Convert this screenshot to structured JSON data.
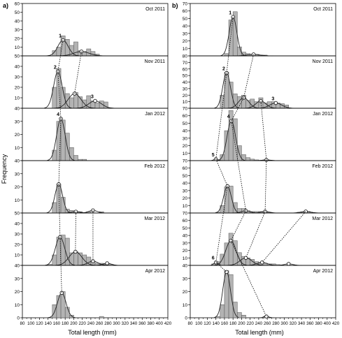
{
  "chart_data": {
    "type": "bar",
    "ylabel": "Frequency",
    "xlabel": "Total length (mm)",
    "x_ticks": [
      80,
      100,
      120,
      140,
      160,
      180,
      200,
      220,
      240,
      260,
      280,
      300,
      320,
      340,
      360,
      380,
      400,
      420
    ],
    "bin_width": 10,
    "panels": [
      {
        "id": "a",
        "label": "a)",
        "months": [
          {
            "month": "Oct 2011",
            "ylim": [
              0,
              60
            ],
            "yticks": [
              0,
              10,
              20,
              30,
              40,
              50,
              60
            ],
            "bins": [
              [
                150,
                6
              ],
              [
                160,
                10
              ],
              [
                170,
                23
              ],
              [
                180,
                19
              ],
              [
                190,
                12
              ],
              [
                200,
                16
              ],
              [
                210,
                6
              ],
              [
                220,
                5
              ],
              [
                230,
                8
              ],
              [
                240,
                5
              ],
              [
                250,
                2
              ]
            ],
            "cohorts": [
              {
                "label": "1",
                "mean": 175,
                "sd": 12,
                "peak": 18
              },
              {
                "label": "",
                "mean": 218,
                "sd": 18,
                "peak": 5
              }
            ]
          },
          {
            "month": "Nov 2011",
            "ylim": [
              0,
              50
            ],
            "yticks": [
              0,
              10,
              20,
              30,
              40,
              50
            ],
            "bins": [
              [
                150,
                20
              ],
              [
                160,
                38
              ],
              [
                170,
                20
              ],
              [
                180,
                14
              ],
              [
                190,
                10
              ],
              [
                200,
                15
              ],
              [
                210,
                11
              ],
              [
                220,
                8
              ],
              [
                230,
                12
              ],
              [
                240,
                7
              ],
              [
                250,
                5
              ],
              [
                260,
                7
              ],
              [
                270,
                6
              ]
            ],
            "cohorts": [
              {
                "label": "2",
                "mean": 163,
                "sd": 10,
                "peak": 35
              },
              {
                "label": "",
                "mean": 202,
                "sd": 15,
                "peak": 14
              },
              {
                "label": "3",
                "mean": 250,
                "sd": 15,
                "peak": 7
              }
            ]
          },
          {
            "month": "Jan 2012",
            "ylim": [
              0,
              40
            ],
            "yticks": [
              0,
              10,
              20,
              30,
              40
            ],
            "bins": [
              [
                150,
                8
              ],
              [
                160,
                30
              ],
              [
                170,
                31
              ],
              [
                180,
                21
              ],
              [
                190,
                10
              ],
              [
                200,
                4
              ],
              [
                210,
                1
              ],
              [
                220,
                1
              ]
            ],
            "cohorts": [
              {
                "label": "4",
                "mean": 170,
                "sd": 10,
                "peak": 32
              }
            ]
          },
          {
            "month": "Feb 2012",
            "ylim": [
              0,
              40
            ],
            "yticks": [
              0,
              10,
              20,
              30,
              40
            ],
            "bins": [
              [
                150,
                8
              ],
              [
                160,
                22
              ],
              [
                170,
                12
              ],
              [
                180,
                3
              ],
              [
                190,
                2
              ],
              [
                200,
                1
              ],
              [
                210,
                1
              ],
              [
                230,
                1
              ],
              [
                260,
                1
              ]
            ],
            "cohorts": [
              {
                "label": "",
                "mean": 165,
                "sd": 9,
                "peak": 22
              },
              {
                "label": "",
                "mean": 205,
                "sd": 10,
                "peak": 1
              },
              {
                "label": "",
                "mean": 245,
                "sd": 10,
                "peak": 2
              }
            ]
          },
          {
            "month": "Mar 2012",
            "ylim": [
              0,
              50
            ],
            "yticks": [
              0,
              10,
              20,
              30,
              40,
              50
            ],
            "bins": [
              [
                140,
                1
              ],
              [
                150,
                10
              ],
              [
                160,
                27
              ],
              [
                170,
                29
              ],
              [
                180,
                26
              ],
              [
                190,
                12
              ],
              [
                200,
                13
              ],
              [
                210,
                12
              ],
              [
                220,
                10
              ],
              [
                230,
                8
              ],
              [
                240,
                4
              ],
              [
                250,
                2
              ],
              [
                260,
                2
              ],
              [
                270,
                1
              ],
              [
                280,
                1
              ]
            ],
            "cohorts": [
              {
                "label": "",
                "mean": 168,
                "sd": 11,
                "peak": 27
              },
              {
                "label": "",
                "mean": 204,
                "sd": 15,
                "peak": 13
              },
              {
                "label": "",
                "mean": 245,
                "sd": 12,
                "peak": 4
              },
              {
                "label": "",
                "mean": 278,
                "sd": 10,
                "peak": 2
              }
            ]
          },
          {
            "month": "Apr 2012",
            "ylim": [
              0,
              40
            ],
            "yticks": [
              0,
              10,
              20,
              30,
              40
            ],
            "bins": [
              [
                150,
                10
              ],
              [
                160,
                17
              ],
              [
                170,
                20
              ],
              [
                180,
                8
              ],
              [
                190,
                2
              ],
              [
                260,
                1
              ]
            ],
            "cohorts": [
              {
                "label": "",
                "mean": 172,
                "sd": 10,
                "peak": 19
              }
            ]
          }
        ]
      },
      {
        "id": "b",
        "label": "b)",
        "months": [
          {
            "month": "Oct 2011",
            "ylim": [
              0,
              70
            ],
            "yticks": [
              0,
              10,
              20,
              30,
              40,
              50,
              60,
              70
            ],
            "bins": [
              [
                160,
                3
              ],
              [
                170,
                48
              ],
              [
                180,
                59
              ],
              [
                190,
                12
              ],
              [
                200,
                5
              ],
              [
                210,
                3
              ],
              [
                220,
                2
              ],
              [
                230,
                2
              ],
              [
                240,
                1
              ],
              [
                250,
                1
              ]
            ],
            "cohorts": [
              {
                "label": "1",
                "mean": 180,
                "sd": 9,
                "peak": 52
              },
              {
                "label": "",
                "mean": 228,
                "sd": 15,
                "peak": 2
              }
            ]
          },
          {
            "month": "Nov 2011",
            "ylim": [
              0,
              80
            ],
            "yticks": [
              0,
              10,
              20,
              30,
              40,
              50,
              60,
              70,
              80
            ],
            "bins": [
              [
                150,
                20
              ],
              [
                160,
                55
              ],
              [
                170,
                40
              ],
              [
                180,
                22
              ],
              [
                190,
                18
              ],
              [
                200,
                20
              ],
              [
                210,
                12
              ],
              [
                220,
                14
              ],
              [
                230,
                10
              ],
              [
                240,
                16
              ],
              [
                250,
                8
              ],
              [
                260,
                10
              ],
              [
                270,
                10
              ],
              [
                280,
                8
              ],
              [
                290,
                7
              ],
              [
                300,
                5
              ]
            ],
            "cohorts": [
              {
                "label": "2",
                "mean": 165,
                "sd": 9,
                "peak": 54
              },
              {
                "label": "",
                "mean": 205,
                "sd": 12,
                "peak": 16
              },
              {
                "label": "",
                "mean": 245,
                "sd": 12,
                "peak": 11
              },
              {
                "label": "3",
                "mean": 280,
                "sd": 14,
                "peak": 8
              }
            ]
          },
          {
            "month": "Jan 2012",
            "ylim": [
              0,
              70
            ],
            "yticks": [
              0,
              10,
              20,
              30,
              40,
              50,
              60,
              70
            ],
            "bins": [
              [
                140,
                1
              ],
              [
                150,
                8
              ],
              [
                160,
                40
              ],
              [
                170,
                67
              ],
              [
                180,
                56
              ],
              [
                190,
                20
              ],
              [
                200,
                8
              ],
              [
                210,
                4
              ],
              [
                220,
                2
              ],
              [
                230,
                1
              ],
              [
                250,
                1
              ]
            ],
            "cohorts": [
              {
                "label": "5",
                "mean": 140,
                "sd": 5,
                "peak": 2
              },
              {
                "label": "4",
                "mean": 176,
                "sd": 10,
                "peak": 53
              },
              {
                "label": "",
                "mean": 258,
                "sd": 10,
                "peak": 1
              }
            ]
          },
          {
            "month": "Feb 2012",
            "ylim": [
              0,
              70
            ],
            "yticks": [
              0,
              10,
              20,
              30,
              40,
              50,
              60,
              70
            ],
            "bins": [
              [
                140,
                1
              ],
              [
                150,
                10
              ],
              [
                160,
                35
              ],
              [
                170,
                36
              ],
              [
                180,
                14
              ],
              [
                190,
                6
              ],
              [
                200,
                6
              ],
              [
                210,
                3
              ],
              [
                220,
                2
              ],
              [
                230,
                2
              ],
              [
                240,
                2
              ],
              [
                250,
                1
              ],
              [
                260,
                1
              ],
              [
                330,
                1
              ],
              [
                340,
                1
              ],
              [
                350,
                2
              ]
            ],
            "cohorts": [
              {
                "label": "",
                "mean": 167,
                "sd": 9,
                "peak": 36
              },
              {
                "label": "",
                "mean": 210,
                "sd": 10,
                "peak": 3
              },
              {
                "label": "",
                "mean": 255,
                "sd": 10,
                "peak": 2
              },
              {
                "label": "",
                "mean": 350,
                "sd": 12,
                "peak": 2
              }
            ]
          },
          {
            "month": "Mar 2012",
            "ylim": [
              0,
              70
            ],
            "yticks": [
              0,
              10,
              20,
              30,
              40,
              50,
              60,
              70
            ],
            "bins": [
              [
                130,
                2
              ],
              [
                140,
                5
              ],
              [
                150,
                15
              ],
              [
                160,
                30
              ],
              [
                170,
                43
              ],
              [
                180,
                33
              ],
              [
                190,
                17
              ],
              [
                200,
                12
              ],
              [
                210,
                10
              ],
              [
                220,
                8
              ],
              [
                230,
                5
              ],
              [
                240,
                4
              ],
              [
                250,
                3
              ],
              [
                260,
                2
              ],
              [
                270,
                2
              ],
              [
                280,
                1
              ]
            ],
            "cohorts": [
              {
                "label": "6",
                "mean": 140,
                "sd": 5,
                "peak": 4
              },
              {
                "label": "",
                "mean": 175,
                "sd": 12,
                "peak": 33
              },
              {
                "label": "",
                "mean": 210,
                "sd": 14,
                "peak": 10
              },
              {
                "label": "",
                "mean": 248,
                "sd": 12,
                "peak": 4
              },
              {
                "label": "",
                "mean": 310,
                "sd": 10,
                "peak": 2
              }
            ]
          },
          {
            "month": "Apr 2012",
            "ylim": [
              0,
              40
            ],
            "yticks": [
              0,
              10,
              20,
              30,
              40
            ],
            "bins": [
              [
                140,
                1
              ],
              [
                150,
                10
              ],
              [
                160,
                36
              ],
              [
                170,
                33
              ],
              [
                180,
                12
              ],
              [
                190,
                4
              ],
              [
                200,
                2
              ],
              [
                250,
                1
              ]
            ],
            "cohorts": [
              {
                "label": "",
                "mean": 165,
                "sd": 9,
                "peak": 35
              },
              {
                "label": "",
                "mean": 258,
                "sd": 6,
                "peak": 1
              }
            ]
          }
        ]
      }
    ]
  },
  "colors": {
    "bar_fill": "#b3b3b3",
    "bar_stroke": "#555555",
    "curve": "#222222",
    "axis": "#000000"
  }
}
